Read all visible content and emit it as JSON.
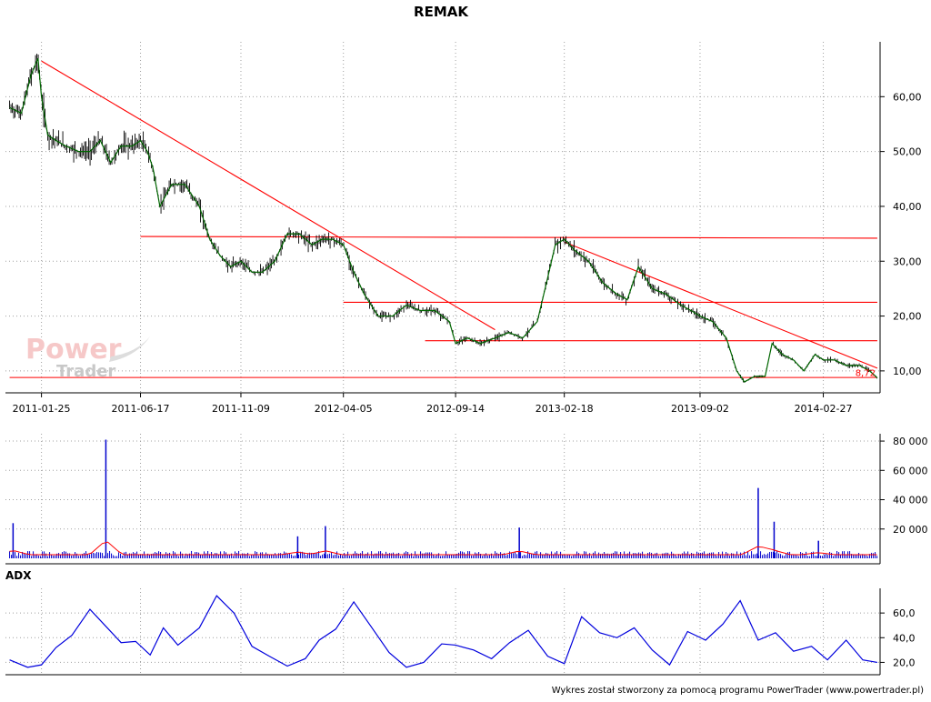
{
  "title": "REMAK",
  "footer": "Wykres został stworzony za pomocą programu PowerTrader (www.powertrader.pl)",
  "watermark": {
    "line1": "Power",
    "line2": "Trader"
  },
  "colors": {
    "price_line": "#006600",
    "price_bar": "#000000",
    "trendlines": "#ff0000",
    "volume_bars": "#0000cc",
    "volume_ma": "#ff0000",
    "adx_line": "#0000dd",
    "grid": "#a0a0a0"
  },
  "chart_data": [
    {
      "type": "line",
      "panel": "price",
      "title": "REMAK",
      "x_tick_labels": [
        "2011-01-25",
        "2011-06-17",
        "2011-11-09",
        "2012-04-05",
        "2012-09-14",
        "2013-02-18",
        "2013-09-02",
        "2014-02-27"
      ],
      "y_tick_labels": [
        "10,00",
        "20,00",
        "30,00",
        "40,00",
        "50,00",
        "60,00"
      ],
      "ylim": [
        6,
        70
      ],
      "grid": true,
      "last_value_label": "8,72",
      "series": [
        {
          "x": [
            "2010-12-10",
            "2010-12-27",
            "2011-01-10",
            "2011-01-20",
            "2011-01-25",
            "2011-02-03",
            "2011-02-15",
            "2011-03-01",
            "2011-03-20",
            "2011-04-05",
            "2011-04-20",
            "2011-05-05",
            "2011-05-20",
            "2011-06-05",
            "2011-06-17",
            "2011-06-27",
            "2011-07-05",
            "2011-07-15",
            "2011-08-01",
            "2011-08-20",
            "2011-09-10",
            "2011-09-25",
            "2011-10-10",
            "2011-10-25",
            "2011-11-09",
            "2011-11-25",
            "2011-12-10",
            "2011-12-28",
            "2012-01-15",
            "2012-02-01",
            "2012-02-20",
            "2012-03-05",
            "2012-03-20",
            "2012-04-05",
            "2012-04-20",
            "2012-05-05",
            "2012-05-25",
            "2012-06-15",
            "2012-07-05",
            "2012-07-25",
            "2012-08-15",
            "2012-09-05",
            "2012-09-14",
            "2012-10-01",
            "2012-10-20",
            "2012-11-10",
            "2012-11-30",
            "2012-12-20",
            "2013-01-10",
            "2013-01-25",
            "2013-02-05",
            "2013-02-18",
            "2013-03-05",
            "2013-03-25",
            "2013-04-15",
            "2013-05-05",
            "2013-05-20",
            "2013-06-05",
            "2013-06-25",
            "2013-07-15",
            "2013-08-05",
            "2013-08-20",
            "2013-09-02",
            "2013-09-20",
            "2013-10-10",
            "2013-10-25",
            "2013-11-05",
            "2013-11-20",
            "2013-12-05",
            "2013-12-15",
            "2013-12-30",
            "2014-01-15",
            "2014-01-30",
            "2014-02-15",
            "2014-02-27",
            "2014-03-15",
            "2014-04-01",
            "2014-04-20",
            "2014-05-05",
            "2014-05-16"
          ],
          "y": [
            58,
            57,
            64,
            67,
            60,
            53,
            52,
            51,
            50,
            50,
            52,
            48,
            51,
            51,
            52,
            50,
            47,
            40,
            44,
            44,
            40,
            34,
            31,
            29,
            30,
            28,
            28,
            30,
            35,
            35,
            33,
            34,
            34,
            33,
            28,
            24,
            20,
            20,
            22,
            21,
            21,
            19,
            15,
            16,
            15,
            16,
            17,
            16,
            19,
            27,
            33,
            34,
            32,
            30,
            26,
            24,
            23,
            29,
            25,
            24,
            22,
            21,
            20,
            19,
            16,
            10,
            8,
            9,
            9,
            15,
            13,
            12,
            10,
            13,
            12,
            12,
            11,
            11,
            10,
            8.72
          ]
        }
      ],
      "trendlines": [
        {
          "from": [
            "2011-01-25",
            66.5
          ],
          "to": [
            "2012-11-10",
            17.5
          ]
        },
        {
          "from": [
            "2013-02-18",
            33.5
          ],
          "to": [
            "2014-05-16",
            10.5
          ]
        },
        {
          "from": [
            "2011-06-17",
            34.5
          ],
          "to": [
            "2014-05-16",
            34.2
          ]
        },
        {
          "from": [
            "2012-04-05",
            22.5
          ],
          "to": [
            "2014-05-16",
            22.5
          ]
        },
        {
          "from": [
            "2012-08-01",
            15.5
          ],
          "to": [
            "2014-05-16",
            15.5
          ]
        },
        {
          "from": [
            "2010-12-10",
            8.8
          ],
          "to": [
            "2014-05-16",
            8.8
          ]
        }
      ]
    },
    {
      "type": "bar",
      "panel": "volume",
      "y_tick_labels": [
        "20 000",
        "40 000",
        "60 000",
        "80 000"
      ],
      "ylim": [
        0,
        85000
      ],
      "grid": true,
      "spikes": [
        {
          "x": "2010-12-15",
          "value": 24000
        },
        {
          "x": "2011-04-28",
          "value": 81000
        },
        {
          "x": "2012-01-30",
          "value": 15000
        },
        {
          "x": "2012-03-10",
          "value": 22000
        },
        {
          "x": "2012-12-15",
          "value": 21000
        },
        {
          "x": "2013-11-25",
          "value": 48000
        },
        {
          "x": "2013-12-18",
          "value": 25000
        },
        {
          "x": "2014-02-20",
          "value": 12000
        }
      ]
    },
    {
      "type": "line",
      "panel": "indicator",
      "title": "ADX",
      "y_tick_labels": [
        "20,0",
        "40,0",
        "60,0"
      ],
      "ylim": [
        10,
        80
      ],
      "grid": true,
      "series": [
        {
          "x": [
            "2010-12-10",
            "2011-01-05",
            "2011-01-25",
            "2011-02-15",
            "2011-03-10",
            "2011-04-05",
            "2011-04-30",
            "2011-05-20",
            "2011-06-10",
            "2011-07-01",
            "2011-07-20",
            "2011-08-10",
            "2011-09-10",
            "2011-10-05",
            "2011-10-30",
            "2011-11-25",
            "2011-12-20",
            "2012-01-15",
            "2012-02-10",
            "2012-03-01",
            "2012-03-25",
            "2012-04-20",
            "2012-05-15",
            "2012-06-10",
            "2012-07-05",
            "2012-07-30",
            "2012-08-25",
            "2012-09-14",
            "2012-10-10",
            "2012-11-05",
            "2012-12-01",
            "2012-12-28",
            "2013-01-25",
            "2013-02-18",
            "2013-03-15",
            "2013-04-10",
            "2013-05-05",
            "2013-05-30",
            "2013-06-25",
            "2013-07-20",
            "2013-08-15",
            "2013-09-10",
            "2013-10-05",
            "2013-10-30",
            "2013-11-25",
            "2013-12-20",
            "2014-01-15",
            "2014-02-10",
            "2014-03-05",
            "2014-04-01",
            "2014-04-25",
            "2014-05-16"
          ],
          "y": [
            22,
            16,
            18,
            32,
            42,
            63,
            48,
            36,
            37,
            26,
            48,
            34,
            48,
            74,
            60,
            33,
            25,
            17,
            23,
            38,
            47,
            69,
            49,
            28,
            16,
            20,
            35,
            34,
            30,
            23,
            36,
            46,
            25,
            19,
            57,
            44,
            40,
            48,
            30,
            18,
            45,
            38,
            51,
            70,
            38,
            44,
            29,
            33,
            22,
            38,
            22,
            20
          ]
        }
      ]
    }
  ]
}
